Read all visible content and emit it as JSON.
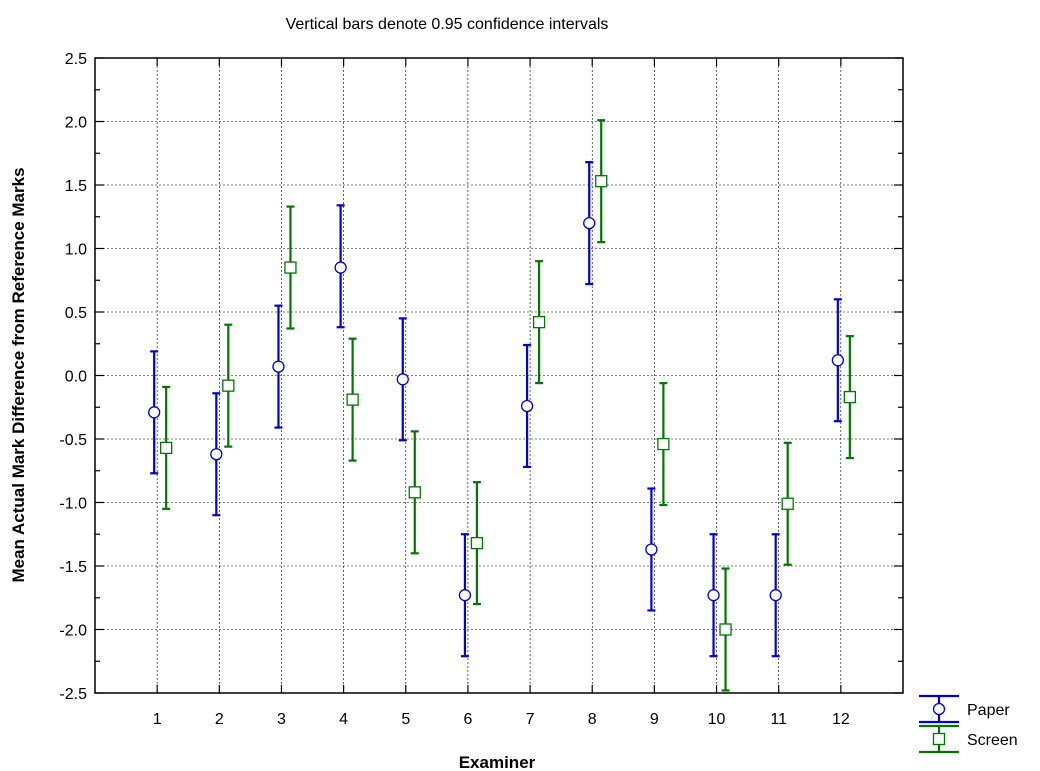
{
  "chart_data": {
    "type": "scatter",
    "subtitle": "Vertical bars denote 0.95 confidence intervals",
    "xlabel": "Examiner",
    "ylabel": "Mean Actual Mark Difference from Reference Marks",
    "categories": [
      "1",
      "2",
      "3",
      "4",
      "5",
      "6",
      "7",
      "8",
      "9",
      "10",
      "11",
      "12"
    ],
    "ylim": [
      -2.5,
      2.5
    ],
    "yticks": [
      "2.5",
      "2.0",
      "1.5",
      "1.0",
      "0.5",
      "0.0",
      "-0.5",
      "-1.0",
      "-1.5",
      "-2.0",
      "-2.5"
    ],
    "ytick_values": [
      2.5,
      2.0,
      1.5,
      1.0,
      0.5,
      0.0,
      -0.5,
      -1.0,
      -1.5,
      -2.0,
      -2.5
    ],
    "grid": true,
    "legend_position": "bottom-right outside",
    "series": [
      {
        "name": "Paper",
        "marker": "circle",
        "color": "#0000dd",
        "values": [
          -0.29,
          -0.62,
          0.07,
          0.85,
          -0.03,
          -1.73,
          -0.24,
          1.2,
          -1.37,
          -1.73,
          -1.73,
          0.12
        ],
        "ci_lower": [
          -0.77,
          -1.1,
          -0.41,
          0.38,
          -0.51,
          -2.21,
          -0.72,
          0.72,
          -1.85,
          -2.21,
          -2.21,
          -0.36
        ],
        "ci_upper": [
          0.19,
          -0.14,
          0.55,
          1.34,
          0.45,
          -1.25,
          0.24,
          1.68,
          -0.89,
          -1.25,
          -1.25,
          0.6
        ]
      },
      {
        "name": "Screen",
        "marker": "square",
        "color": "#007700",
        "values": [
          -0.57,
          -0.08,
          0.85,
          -0.19,
          -0.92,
          -1.32,
          0.42,
          1.53,
          -0.54,
          -2.0,
          -1.01,
          -0.17
        ],
        "ci_lower": [
          -1.05,
          -0.56,
          0.37,
          -0.67,
          -1.4,
          -1.8,
          -0.06,
          1.05,
          -1.02,
          -2.48,
          -1.49,
          -0.65
        ],
        "ci_upper": [
          -0.09,
          0.4,
          1.33,
          0.29,
          -0.44,
          -0.84,
          0.9,
          2.01,
          -0.06,
          -1.52,
          -0.53,
          0.31
        ]
      }
    ]
  }
}
